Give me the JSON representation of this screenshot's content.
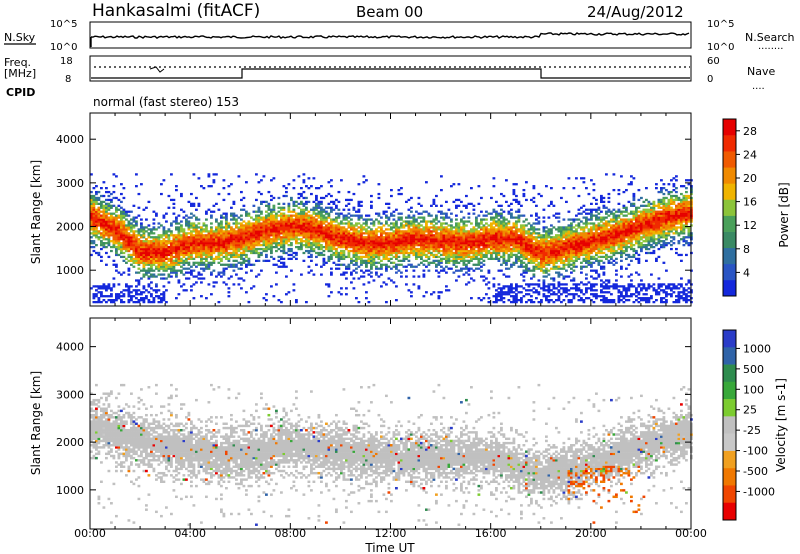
{
  "header": {
    "station": "Hankasalmi (fitACF)",
    "beam": "Beam 00",
    "date": "24/Aug/2012"
  },
  "status_panels": {
    "nsky_label": "N.Sky",
    "nsearch_label": "N.Search",
    "nsearch_dots": "........",
    "nsky_ticks": [
      "10^5",
      "10^0"
    ],
    "nsearch_ticks": [
      "10^5",
      "10^0"
    ],
    "freq_label_line1": "Freq.",
    "freq_label_line2": "[MHz]",
    "freq_ticks": [
      "18",
      "8"
    ],
    "nave_label": "Nave",
    "nave_dots": "....",
    "nave_ticks": [
      "60",
      "0"
    ],
    "cpid_label": "CPID",
    "cpid_text": "normal (fast stereo) 153"
  },
  "colors": {
    "power_scale": [
      "#1428dc",
      "#2a55c4",
      "#2f6fa0",
      "#3a8a64",
      "#4aa05a",
      "#8cc43a",
      "#f0b400",
      "#f08a00",
      "#f05a00",
      "#f02a00",
      "#e60000"
    ],
    "velocity_scale": [
      "#2a3cc8",
      "#2f63a8",
      "#2e8c4e",
      "#38a83a",
      "#7ccc30",
      "#c0c0c0",
      "#c8c8c8",
      "#f0a020",
      "#f07800",
      "#f04600",
      "#e80000"
    ],
    "ground_scatter": "#c0c0c0"
  },
  "chart_data": [
    {
      "type": "heatmap",
      "title": "",
      "xlabel": "Time UT",
      "ylabel": "Slant Range [km]",
      "x_ticks": [
        "00:00",
        "04:00",
        "08:00",
        "12:00",
        "16:00",
        "20:00",
        "00:00"
      ],
      "x_range_hours": [
        0,
        24
      ],
      "y_ticks": [
        "1000",
        "2000",
        "3000",
        "4000"
      ],
      "ylim": [
        180,
        4600
      ],
      "colorbar_label": "Power [dB]",
      "colorbar_ticks": [
        "4",
        "8",
        "12",
        "16",
        "20",
        "24",
        "28"
      ],
      "colorbar_range": [
        0,
        30
      ],
      "band_center_km": [
        [
          0,
          2200
        ],
        [
          1,
          1900
        ],
        [
          2,
          1400
        ],
        [
          3,
          1400
        ],
        [
          4,
          1600
        ],
        [
          5,
          1600
        ],
        [
          6,
          1700
        ],
        [
          7,
          1900
        ],
        [
          8,
          2000
        ],
        [
          9,
          1900
        ],
        [
          10,
          1700
        ],
        [
          11,
          1600
        ],
        [
          12,
          1600
        ],
        [
          13,
          1700
        ],
        [
          14,
          1650
        ],
        [
          15,
          1600
        ],
        [
          16,
          1700
        ],
        [
          17,
          1700
        ],
        [
          18,
          1350
        ],
        [
          19,
          1500
        ],
        [
          20,
          1650
        ],
        [
          21,
          1800
        ],
        [
          22,
          2000
        ],
        [
          23,
          2200
        ],
        [
          24,
          2300
        ]
      ]
    },
    {
      "type": "heatmap",
      "title": "",
      "xlabel": "Time UT",
      "ylabel": "Slant Range [km]",
      "x_ticks": [
        "00:00",
        "04:00",
        "08:00",
        "12:00",
        "16:00",
        "20:00",
        "00:00"
      ],
      "x_range_hours": [
        0,
        24
      ],
      "y_ticks": [
        "1000",
        "2000",
        "3000",
        "4000"
      ],
      "ylim": [
        180,
        4600
      ],
      "colorbar_label": "Velocity [m s-1]",
      "colorbar_ticks": [
        "1000",
        "500",
        "100",
        "25",
        "-25",
        "-100",
        "-500",
        "-1000"
      ],
      "band_center_km": [
        [
          0,
          2300
        ],
        [
          2,
          2000
        ],
        [
          4,
          1800
        ],
        [
          6,
          1700
        ],
        [
          8,
          1900
        ],
        [
          10,
          1750
        ],
        [
          12,
          1650
        ],
        [
          14,
          1650
        ],
        [
          16,
          1650
        ],
        [
          18,
          1300
        ],
        [
          20,
          1500
        ],
        [
          22,
          1900
        ],
        [
          24,
          2200
        ]
      ]
    }
  ]
}
